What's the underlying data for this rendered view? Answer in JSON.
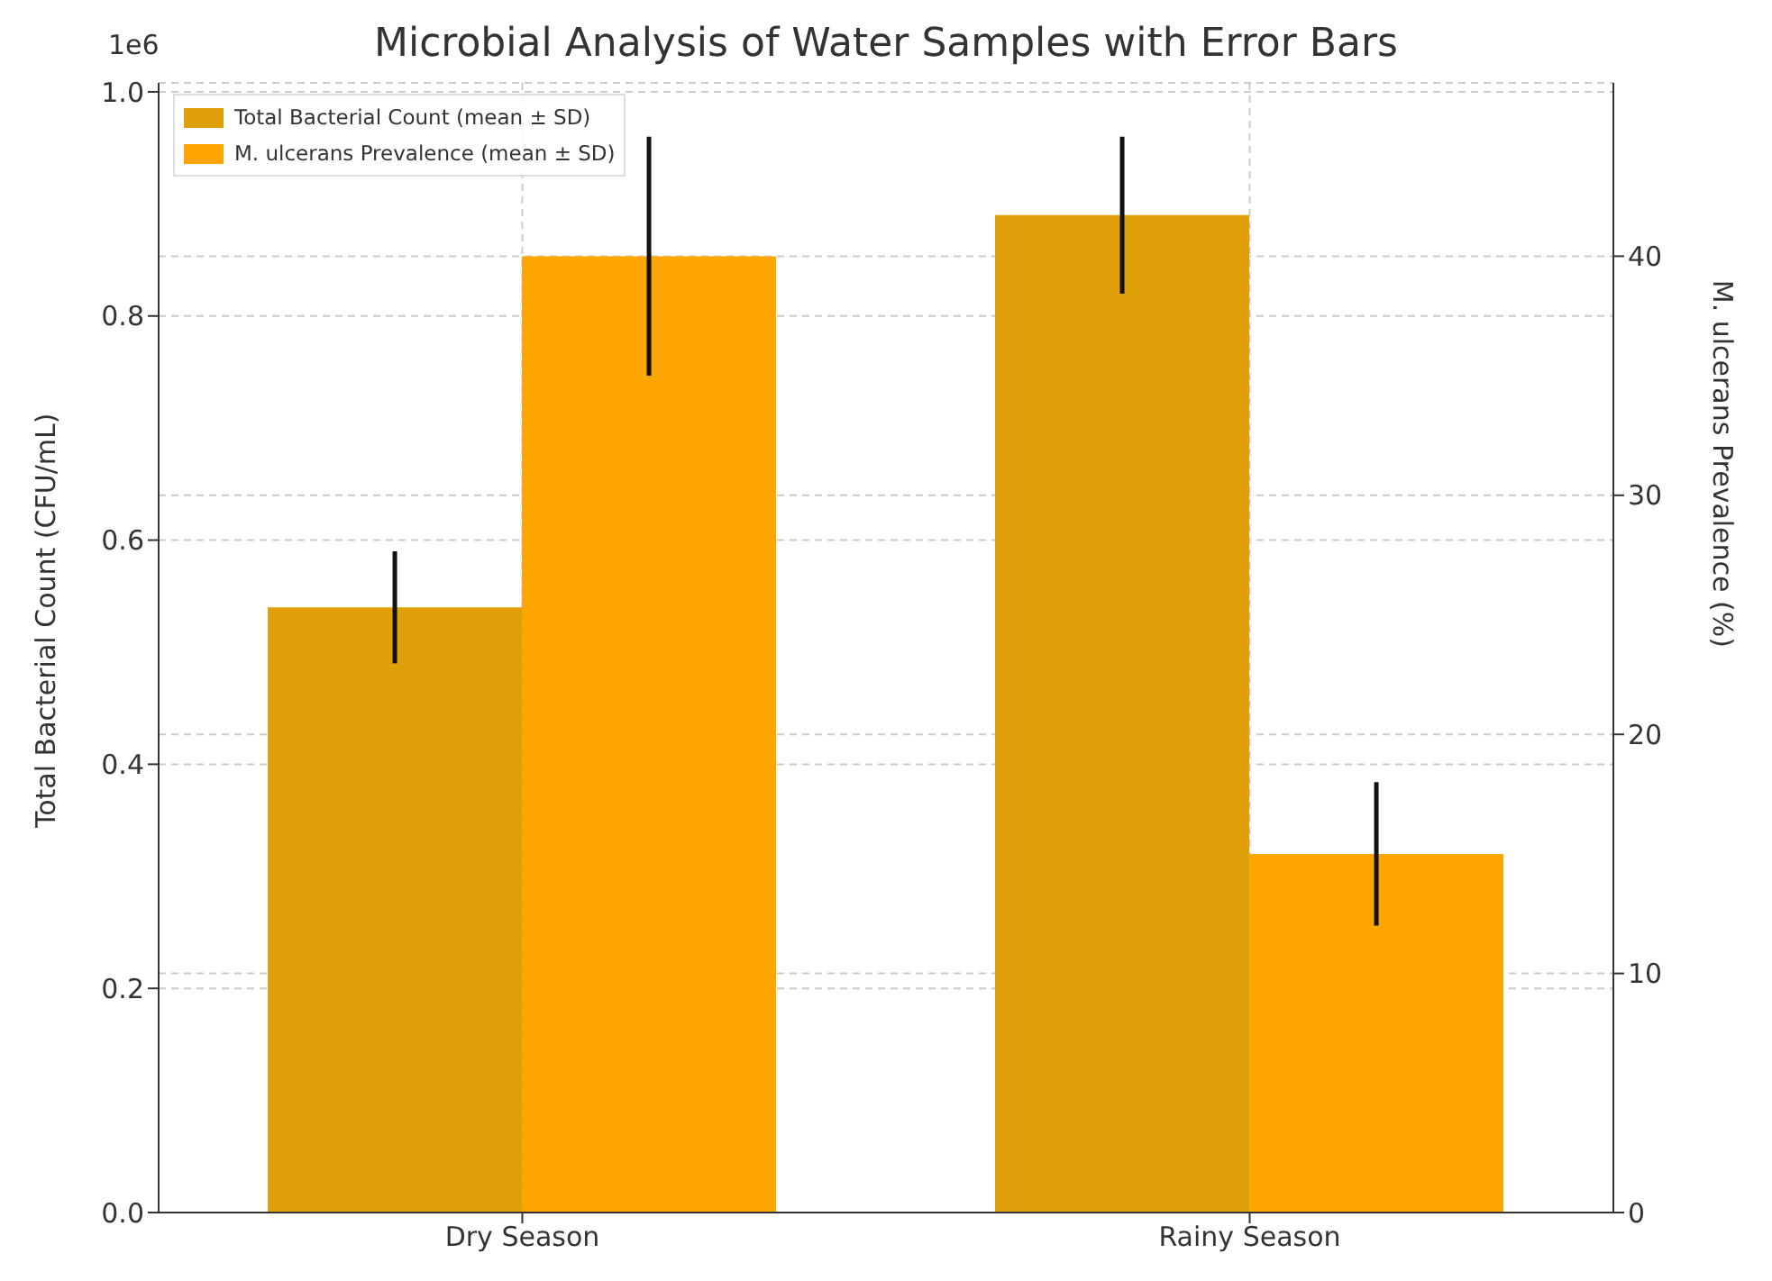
{
  "chart_data": {
    "type": "bar",
    "title": "Microbial Analysis of Water Samples with Error Bars",
    "ylabel": "Total Bacterial Count (CFU/mL)",
    "y2label": "M. ulcerans Prevalence (%)",
    "annotations": [
      "1e6"
    ],
    "categories": [
      "Dry Season",
      "Rainy Season"
    ],
    "series": [
      {
        "name": "Total Bacterial Count (mean ± SD)",
        "color": "#e0a00a",
        "values": [
          0.54,
          0.89
        ],
        "errors": [
          0.05,
          0.07
        ]
      },
      {
        "name": "M. ulcerans Prevalence (mean ± SD)",
        "color": "#ffa500",
        "values": [
          40,
          15
        ],
        "errors": [
          5,
          3
        ],
        "axis": "y2"
      }
    ],
    "ylim": [
      0,
      1.008
    ],
    "yticks": [
      {
        "value": 0,
        "label": "0.0"
      },
      0.2,
      0.4,
      0.6,
      0.8,
      {
        "value": 1,
        "label": "1.0"
      }
    ],
    "y2lim": [
      0,
      47.25
    ],
    "y2ticks": [
      0,
      10,
      20,
      30,
      40
    ],
    "grid": true,
    "legend": "top left"
  }
}
